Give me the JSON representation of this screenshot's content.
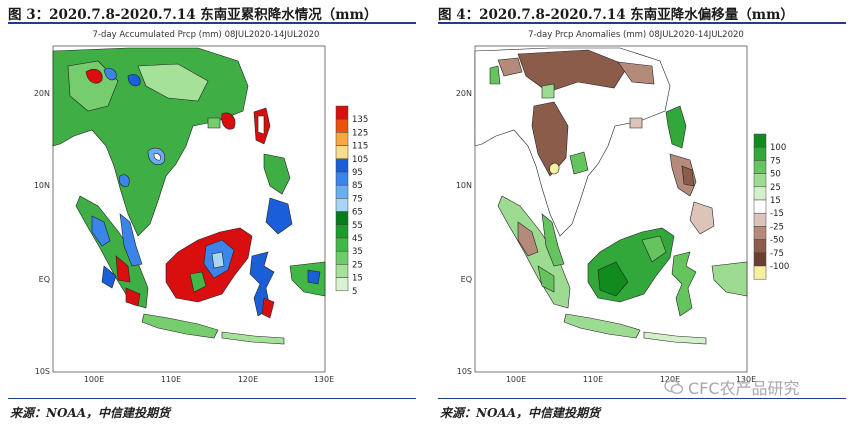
{
  "figures": [
    {
      "title": "图 3：2020.7.8-2020.7.14 东南亚累积降水情况（mm）",
      "map_title": "7-day Accumulated Prcp (mm) 08JUL2020-14JUL2020",
      "source": "来源：NOAA，中信建投期货"
    },
    {
      "title": "图 4：2020.7.8-2020.7.14 东南亚降水偏移量（mm）",
      "map_title": "7-day Prcp Anomalies (mm) 08JUL2020-14JUL2020",
      "source": "来源：NOAA，中信建投期货"
    }
  ],
  "watermark": "CFC农产品研究",
  "chart_data": [
    {
      "type": "heatmap",
      "title": "7-day Accumulated Prcp (mm) 08JUL2020-14JUL2020",
      "x_ticks": [
        "100E",
        "110E",
        "120E",
        "130E"
      ],
      "y_ticks": [
        "20N",
        "10N",
        "EQ",
        "10S"
      ],
      "x_range": [
        95,
        130
      ],
      "y_range": [
        -10,
        25
      ],
      "legend_position": "right",
      "legend_levels": [
        "135",
        "125",
        "115",
        "105",
        "95",
        "85",
        "75",
        "65",
        "55",
        "45",
        "35",
        "25",
        "15",
        "5"
      ],
      "legend_colors": [
        "#d90f0f",
        "#ee5010",
        "#f8a840",
        "#fcdc88",
        "#1a5ed8",
        "#3a84ea",
        "#6aaef0",
        "#a8d4f6",
        "#0a7a1a",
        "#1f9a2c",
        "#43b648",
        "#6fcc6a",
        "#a3e29a",
        "#d9f3d2"
      ]
    },
    {
      "type": "heatmap",
      "title": "7-day Prcp Anomalies (mm) 08JUL2020-14JUL2020",
      "x_ticks": [
        "100E",
        "110E",
        "120E",
        "130E"
      ],
      "y_ticks": [
        "20N",
        "10N",
        "EQ",
        "10S"
      ],
      "x_range": [
        95,
        130
      ],
      "y_range": [
        -10,
        25
      ],
      "legend_position": "right",
      "legend_levels": [
        "100",
        "75",
        "50",
        "25",
        "15",
        "-15",
        "-25",
        "-50",
        "-75",
        "-100"
      ],
      "legend_colors": [
        "#118a1e",
        "#33a83a",
        "#66c45e",
        "#9edb92",
        "#d3f0cb",
        "#ffffff",
        "#dcc5b8",
        "#b48a7a",
        "#8c5c4a",
        "#6b4032",
        "#f6f0a0"
      ]
    }
  ]
}
